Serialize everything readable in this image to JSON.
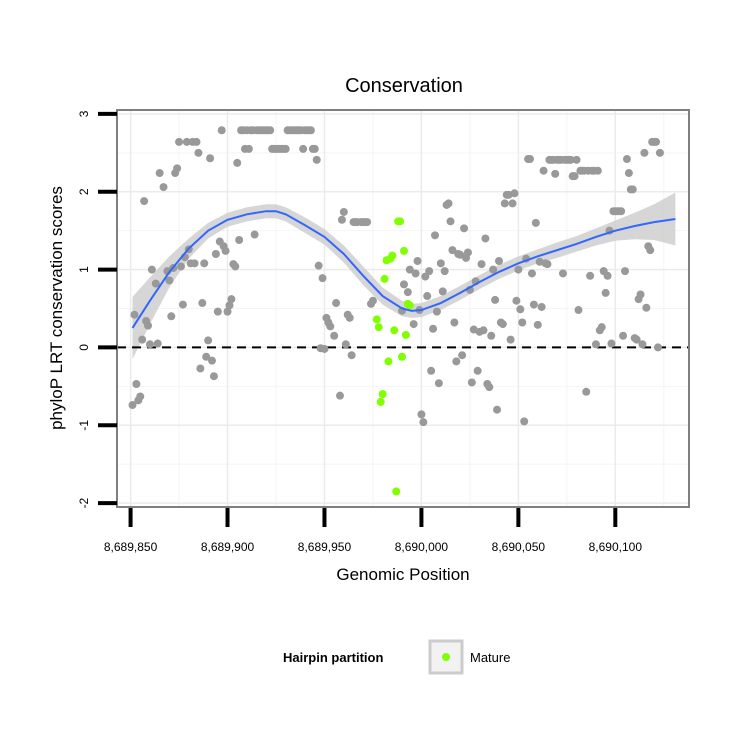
{
  "chart_data": {
    "type": "scatter",
    "title": "Conservation",
    "xlabel": "Genomic Position",
    "ylabel": "phyloP LRT conservation scores",
    "xlim": [
      8689843,
      8690138
    ],
    "ylim": [
      -2.05,
      3.05
    ],
    "x_ticks": [
      8689850,
      8689900,
      8689950,
      8690000,
      8690050,
      8690100
    ],
    "x_tick_labels": [
      "8,689,850",
      "8,689,900",
      "8,689,950",
      "8,690,000",
      "8,690,050",
      "8,690,100"
    ],
    "y_ticks": [
      -2,
      -1,
      0,
      1,
      2,
      3
    ],
    "y_tick_labels": [
      "-2",
      "-1",
      "0",
      "1",
      "2",
      "3"
    ],
    "grid": true,
    "reference_line": {
      "y": 0,
      "style": "dashed"
    },
    "colors": {
      "other_points": "#999999",
      "mature_points": "#7fff00",
      "smooth_line": "#3366ff",
      "confidence_band": "#cccccc",
      "grid": "#ebebeb",
      "panel_border": "#7f7f7f"
    },
    "legend": {
      "title": "Hairpin partition",
      "entries": [
        "Mature"
      ],
      "position": "bottom"
    },
    "series": [
      {
        "points": [
          [
            8689851,
            -0.74
          ],
          [
            8689852,
            0.42
          ],
          [
            8689853,
            -0.47
          ],
          [
            8689854,
            -0.68
          ],
          [
            8689855,
            -0.63
          ],
          [
            8689856,
            0.1
          ],
          [
            8689857,
            1.88
          ],
          [
            8689858,
            0.34
          ],
          [
            8689859,
            0.28
          ],
          [
            8689860,
            0.04
          ],
          [
            8689861,
            1.0
          ],
          [
            8689863,
            0.82
          ],
          [
            8689864,
            0.05
          ],
          [
            8689865,
            2.24
          ],
          [
            8689867,
            2.06
          ],
          [
            8689869,
            0.98
          ],
          [
            8689870,
            0.86
          ],
          [
            8689871,
            0.4
          ],
          [
            8689872,
            1.02
          ],
          [
            8689873,
            2.24
          ],
          [
            8689874,
            2.3
          ],
          [
            8689875,
            2.64
          ],
          [
            8689876,
            1.04
          ],
          [
            8689877,
            0.55
          ],
          [
            8689878,
            1.16
          ],
          [
            8689879,
            2.64
          ],
          [
            8689880,
            1.26
          ],
          [
            8689881,
            1.08
          ],
          [
            8689882,
            2.64
          ],
          [
            8689883,
            1.08
          ],
          [
            8689884,
            2.64
          ],
          [
            8689885,
            2.5
          ],
          [
            8689886,
            -0.27
          ],
          [
            8689887,
            0.57
          ],
          [
            8689888,
            1.08
          ],
          [
            8689889,
            -0.12
          ],
          [
            8689890,
            0.09
          ],
          [
            8689891,
            2.43
          ],
          [
            8689892,
            -0.17
          ],
          [
            8689893,
            -0.37
          ],
          [
            8689894,
            1.2
          ],
          [
            8689895,
            0.46
          ],
          [
            8689896,
            1.36
          ],
          [
            8689897,
            2.79
          ],
          [
            8689898,
            1.3
          ],
          [
            8689899,
            1.24
          ],
          [
            8689900,
            0.46
          ],
          [
            8689901,
            0.54
          ],
          [
            8689902,
            0.62
          ],
          [
            8689903,
            1.07
          ],
          [
            8689904,
            1.04
          ],
          [
            8689905,
            2.37
          ],
          [
            8689906,
            1.38
          ],
          [
            8689907,
            2.79
          ],
          [
            8689908,
            2.79
          ],
          [
            8689909,
            2.55
          ],
          [
            8689910,
            2.79
          ],
          [
            8689911,
            2.55
          ],
          [
            8689912,
            2.79
          ],
          [
            8689913,
            2.79
          ],
          [
            8689914,
            1.45
          ],
          [
            8689915,
            2.79
          ],
          [
            8689916,
            2.79
          ],
          [
            8689917,
            2.79
          ],
          [
            8689918,
            2.79
          ],
          [
            8689919,
            2.79
          ],
          [
            8689920,
            2.79
          ],
          [
            8689921,
            2.79
          ],
          [
            8689922,
            2.79
          ],
          [
            8689923,
            2.55
          ],
          [
            8689924,
            2.55
          ],
          [
            8689925,
            2.55
          ],
          [
            8689926,
            2.55
          ],
          [
            8689927,
            2.55
          ],
          [
            8689928,
            2.55
          ],
          [
            8689929,
            2.55
          ],
          [
            8689930,
            2.55
          ],
          [
            8689931,
            2.79
          ],
          [
            8689932,
            2.79
          ],
          [
            8689933,
            2.79
          ],
          [
            8689934,
            2.79
          ],
          [
            8689935,
            2.79
          ],
          [
            8689936,
            2.79
          ],
          [
            8689937,
            2.79
          ],
          [
            8689938,
            2.79
          ],
          [
            8689939,
            2.55
          ],
          [
            8689940,
            2.79
          ],
          [
            8689941,
            2.79
          ],
          [
            8689942,
            2.79
          ],
          [
            8689943,
            2.79
          ],
          [
            8689944,
            2.55
          ],
          [
            8689945,
            2.55
          ],
          [
            8689946,
            2.41
          ],
          [
            8689947,
            1.05
          ],
          [
            8689948,
            -0.01
          ],
          [
            8689949,
            0.89
          ],
          [
            8689950,
            -0.02
          ],
          [
            8689951,
            0.38
          ],
          [
            8689952,
            0.32
          ],
          [
            8689953,
            0.27
          ],
          [
            8689955,
            0.15
          ],
          [
            8689956,
            0.57
          ],
          [
            8689958,
            -0.62
          ],
          [
            8689959,
            1.64
          ],
          [
            8689960,
            1.74
          ],
          [
            8689961,
            0.04
          ],
          [
            8689962,
            0.42
          ],
          [
            8689963,
            0.38
          ],
          [
            8689964,
            -0.1
          ],
          [
            8689965,
            1.61
          ],
          [
            8689966,
            1.61
          ],
          [
            8689967,
            1.61
          ],
          [
            8689969,
            1.61
          ],
          [
            8689970,
            1.61
          ],
          [
            8689971,
            1.61
          ],
          [
            8689972,
            1.61
          ],
          [
            8689974,
            0.56
          ],
          [
            8689975,
            0.6
          ],
          [
            8689990,
            0.47
          ],
          [
            8689991,
            0.81
          ],
          [
            8689993,
            0.71
          ],
          [
            8689994,
            1.0
          ],
          [
            8689996,
            0.3
          ],
          [
            8689997,
            0.95
          ],
          [
            8689998,
            1.11
          ],
          [
            8689999,
            0.48
          ],
          [
            8690000,
            -0.86
          ],
          [
            8690001,
            -0.96
          ],
          [
            8690002,
            0.91
          ],
          [
            8690003,
            0.66
          ],
          [
            8690004,
            0.98
          ],
          [
            8690005,
            -0.3
          ],
          [
            8690006,
            0.24
          ],
          [
            8690007,
            1.44
          ],
          [
            8690008,
            0.46
          ],
          [
            8690009,
            -0.46
          ],
          [
            8690010,
            1.08
          ],
          [
            8690011,
            0.72
          ],
          [
            8690012,
            0.98
          ],
          [
            8690013,
            1.83
          ],
          [
            8690014,
            1.85
          ],
          [
            8690015,
            1.62
          ],
          [
            8690016,
            1.25
          ],
          [
            8690017,
            0.32
          ],
          [
            8690018,
            -0.18
          ],
          [
            8690019,
            1.2
          ],
          [
            8690020,
            1.19
          ],
          [
            8690021,
            -0.1
          ],
          [
            8690022,
            1.53
          ],
          [
            8690023,
            1.15
          ],
          [
            8690024,
            1.22
          ],
          [
            8690025,
            0.74
          ],
          [
            8690026,
            -0.45
          ],
          [
            8690027,
            0.23
          ],
          [
            8690028,
            0.85
          ],
          [
            8690029,
            -0.3
          ],
          [
            8690030,
            0.2
          ],
          [
            8690031,
            1.07
          ],
          [
            8690032,
            0.22
          ],
          [
            8690033,
            1.4
          ],
          [
            8690034,
            -0.47
          ],
          [
            8690035,
            -0.51
          ],
          [
            8690036,
            0.15
          ],
          [
            8690037,
            1.0
          ],
          [
            8690038,
            0.61
          ],
          [
            8690039,
            -0.8
          ],
          [
            8690040,
            1.11
          ],
          [
            8690041,
            0.32
          ],
          [
            8690042,
            0.3
          ],
          [
            8690043,
            1.85
          ],
          [
            8690044,
            1.96
          ],
          [
            8690045,
            1.96
          ],
          [
            8690046,
            0.1
          ],
          [
            8690047,
            1.85
          ],
          [
            8690048,
            1.98
          ],
          [
            8690049,
            0.6
          ],
          [
            8690050,
            1.0
          ],
          [
            8690051,
            0.49
          ],
          [
            8690052,
            0.32
          ],
          [
            8690053,
            -0.95
          ],
          [
            8690054,
            1.14
          ],
          [
            8690055,
            2.42
          ],
          [
            8690056,
            2.42
          ],
          [
            8690057,
            0.95
          ],
          [
            8690058,
            0.55
          ],
          [
            8690059,
            1.6
          ],
          [
            8690060,
            0.29
          ],
          [
            8690061,
            1.1
          ],
          [
            8690062,
            0.52
          ],
          [
            8690063,
            2.27
          ],
          [
            8690064,
            1.08
          ],
          [
            8690065,
            1.07
          ],
          [
            8690066,
            2.41
          ],
          [
            8690067,
            2.41
          ],
          [
            8690068,
            2.41
          ],
          [
            8690069,
            2.23
          ],
          [
            8690070,
            2.41
          ],
          [
            8690071,
            2.41
          ],
          [
            8690072,
            2.41
          ],
          [
            8690073,
            0.95
          ],
          [
            8690074,
            2.41
          ],
          [
            8690075,
            2.41
          ],
          [
            8690076,
            2.41
          ],
          [
            8690077,
            2.41
          ],
          [
            8690078,
            2.2
          ],
          [
            8690079,
            2.2
          ],
          [
            8690080,
            2.41
          ],
          [
            8690081,
            0.48
          ],
          [
            8690082,
            2.27
          ],
          [
            8690083,
            2.27
          ],
          [
            8690084,
            2.27
          ],
          [
            8690085,
            -0.57
          ],
          [
            8690086,
            2.27
          ],
          [
            8690087,
            0.92
          ],
          [
            8690088,
            2.27
          ],
          [
            8690089,
            2.27
          ],
          [
            8690090,
            0.04
          ],
          [
            8690091,
            2.27
          ],
          [
            8690092,
            0.22
          ],
          [
            8690093,
            0.26
          ],
          [
            8690094,
            0.98
          ],
          [
            8690095,
            0.7
          ],
          [
            8690096,
            0.92
          ],
          [
            8690097,
            1.5
          ],
          [
            8690098,
            0.05
          ],
          [
            8690099,
            1.75
          ],
          [
            8690100,
            1.75
          ],
          [
            8690101,
            1.75
          ],
          [
            8690102,
            1.75
          ],
          [
            8690103,
            1.75
          ],
          [
            8690104,
            0.15
          ],
          [
            8690105,
            0.98
          ],
          [
            8690106,
            2.42
          ],
          [
            8690107,
            2.24
          ],
          [
            8690108,
            2.03
          ],
          [
            8690109,
            2.03
          ],
          [
            8690110,
            0.12
          ],
          [
            8690111,
            0.1
          ],
          [
            8690112,
            0.62
          ],
          [
            8690113,
            0.68
          ],
          [
            8690114,
            0.04
          ],
          [
            8690115,
            2.5
          ],
          [
            8690116,
            0.51
          ],
          [
            8690117,
            1.3
          ],
          [
            8690118,
            1.25
          ],
          [
            8690119,
            2.64
          ],
          [
            8690120,
            2.64
          ],
          [
            8690121,
            2.64
          ],
          [
            8690122,
            0.0
          ],
          [
            8690123,
            2.5
          ]
        ]
      },
      {
        "name": "Mature",
        "points": [
          [
            8689977,
            0.36
          ],
          [
            8689978,
            0.26
          ],
          [
            8689979,
            -0.7
          ],
          [
            8689980,
            -0.6
          ],
          [
            8689981,
            0.88
          ],
          [
            8689982,
            1.12
          ],
          [
            8689983,
            -0.18
          ],
          [
            8689984,
            1.14
          ],
          [
            8689985,
            1.18
          ],
          [
            8689986,
            0.22
          ],
          [
            8689987,
            -1.85
          ],
          [
            8689988,
            1.62
          ],
          [
            8689989,
            1.62
          ],
          [
            8689990,
            -0.12
          ],
          [
            8689991,
            1.24
          ],
          [
            8689992,
            0.16
          ],
          [
            8689993,
            0.56
          ],
          [
            8689994,
            0.54
          ]
        ]
      }
    ],
    "smooth": {
      "x": [
        8689851,
        8689860,
        8689870,
        8689880,
        8689890,
        8689900,
        8689910,
        8689920,
        8689925,
        8689930,
        8689940,
        8689950,
        8689960,
        8689970,
        8689980,
        8689990,
        8689995,
        8690000,
        8690010,
        8690020,
        8690030,
        8690040,
        8690050,
        8690060,
        8690070,
        8690080,
        8690090,
        8690100,
        8690110,
        8690120,
        8690131
      ],
      "y": [
        0.25,
        0.6,
        0.97,
        1.27,
        1.5,
        1.64,
        1.71,
        1.75,
        1.75,
        1.71,
        1.57,
        1.42,
        1.2,
        0.92,
        0.66,
        0.5,
        0.47,
        0.48,
        0.57,
        0.7,
        0.84,
        0.97,
        1.08,
        1.17,
        1.25,
        1.33,
        1.42,
        1.5,
        1.56,
        1.61,
        1.65
      ],
      "se": [
        0.4,
        0.3,
        0.2,
        0.13,
        0.1,
        0.09,
        0.09,
        0.09,
        0.09,
        0.09,
        0.1,
        0.1,
        0.11,
        0.12,
        0.11,
        0.1,
        0.09,
        0.09,
        0.09,
        0.09,
        0.09,
        0.09,
        0.09,
        0.09,
        0.1,
        0.1,
        0.11,
        0.13,
        0.17,
        0.23,
        0.34
      ]
    }
  }
}
